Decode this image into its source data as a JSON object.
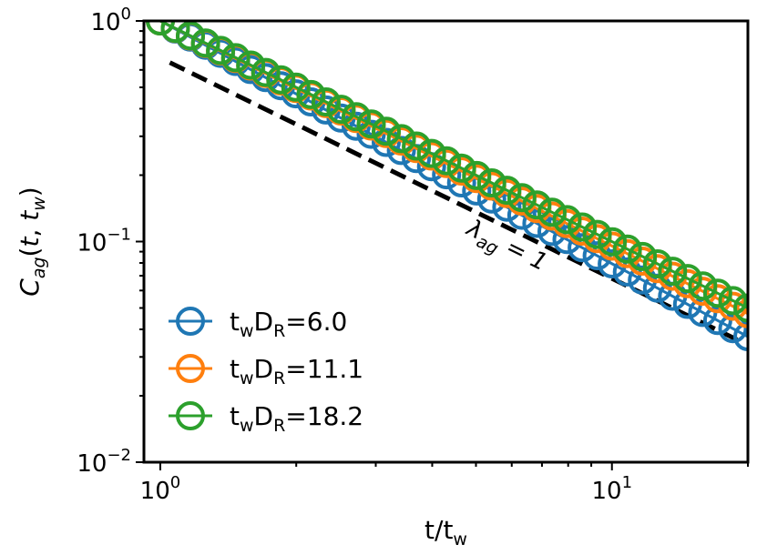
{
  "chart_data": {
    "type": "scatter",
    "x_scale": "log",
    "y_scale": "log",
    "xlim": [
      0.92,
      20.0
    ],
    "ylim": [
      0.01,
      1.0
    ],
    "xlabel": {
      "main": "t/t",
      "sub": "w"
    },
    "ylabel": {
      "italic_main": "C",
      "italic_sub": "ag",
      "rest_open": "(",
      "t": "t",
      "comma": ", ",
      "tw_main": "t",
      "tw_sub": "w",
      "rest_close": ")"
    },
    "x_ticks": [
      {
        "value": 1,
        "base": "10",
        "exp": "0"
      },
      {
        "value": 10,
        "base": "10",
        "exp": "1"
      }
    ],
    "y_ticks": [
      {
        "value": 1.0,
        "base": "10",
        "exp": "0"
      },
      {
        "value": 0.1,
        "base": "10",
        "exp": "−1"
      },
      {
        "value": 0.01,
        "base": "10",
        "exp": "−2"
      }
    ],
    "legend_position": "lower-left",
    "grid": false,
    "series": [
      {
        "name": {
          "a": "t",
          "a_sub": "w",
          "b": "D",
          "b_sub": "R",
          "eq": "=6.0"
        },
        "color": "#1f77b4",
        "exponent": -1.1,
        "t_start": 1.0,
        "t_end": 20.0,
        "n_points": 40
      },
      {
        "name": {
          "a": "t",
          "a_sub": "w",
          "b": "D",
          "b_sub": "R",
          "eq": "=11.1"
        },
        "color": "#ff7f0e",
        "exponent": -1.02,
        "t_start": 1.0,
        "t_end": 20.0,
        "n_points": 40
      },
      {
        "name": {
          "a": "t",
          "a_sub": "w",
          "b": "D",
          "b_sub": "R",
          "eq": "=18.2"
        },
        "color": "#2ca02c",
        "exponent": -1.0,
        "t_start": 1.0,
        "t_end": 20.0,
        "n_points": 40
      }
    ],
    "reference_line": {
      "style": "dashed",
      "color": "#000000",
      "exponent": -1.0,
      "x_range": [
        1.05,
        19.5
      ],
      "y_at_x1": 0.68,
      "label": {
        "greek": "λ",
        "sub": "ag",
        "eq": " = 1"
      }
    }
  }
}
